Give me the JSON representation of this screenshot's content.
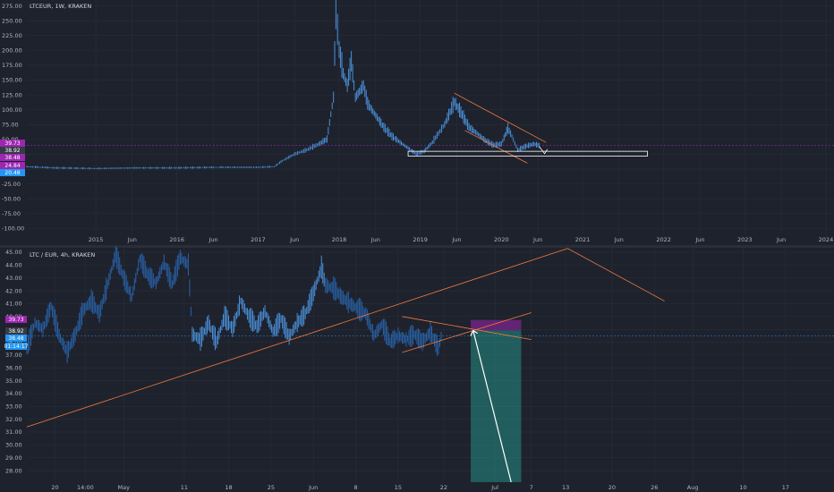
{
  "top_panel": {
    "header": "LTCEUR, 1W, KRAKEN"
  },
  "bottom_panel": {
    "header": "LTC / EUR, 4h, KRAKEN"
  },
  "chart_data": [
    {
      "type": "candlestick",
      "symbol": "LTCEUR",
      "interval": "1W",
      "exchange": "KRAKEN",
      "y_ticks": [
        "275.00",
        "250.00",
        "225.00",
        "200.00",
        "175.00",
        "150.00",
        "125.00",
        "100.00",
        "75.00",
        "50.00",
        "25.00",
        "0.00",
        "-25.00",
        "-50.00",
        "-75.00",
        "-100.00"
      ],
      "ylim": [
        -110,
        285
      ],
      "x_ticks": [
        "2015",
        "Jun",
        "2016",
        "Jun",
        "2017",
        "Jun",
        "2018",
        "Jun",
        "2019",
        "Jun",
        "2020",
        "Jun",
        "2021",
        "Jun",
        "2022",
        "Jun",
        "2023",
        "Jun",
        "2024"
      ],
      "price_badges": [
        {
          "value": 39.73,
          "label": "39.73",
          "color": "#9c27b0"
        },
        {
          "value": 38.92,
          "label": "38.92",
          "color": "#363a45"
        },
        {
          "value": 38.48,
          "label": "38.48",
          "color": "#9c27b0"
        },
        {
          "value": 24.84,
          "label": "24.84",
          "color": "#9c27b0"
        },
        {
          "value": 20.48,
          "label": "20.48",
          "color": "#2196f3"
        }
      ],
      "price_path": [
        {
          "x": 2014.15,
          "y": 4
        },
        {
          "x": 2014.5,
          "y": 2
        },
        {
          "x": 2015.0,
          "y": 1
        },
        {
          "x": 2015.5,
          "y": 2
        },
        {
          "x": 2016.0,
          "y": 2
        },
        {
          "x": 2016.5,
          "y": 3
        },
        {
          "x": 2017.0,
          "y": 3
        },
        {
          "x": 2017.2,
          "y": 4
        },
        {
          "x": 2017.3,
          "y": 14
        },
        {
          "x": 2017.45,
          "y": 25
        },
        {
          "x": 2017.6,
          "y": 32
        },
        {
          "x": 2017.75,
          "y": 42
        },
        {
          "x": 2017.85,
          "y": 50
        },
        {
          "x": 2017.93,
          "y": 120
        },
        {
          "x": 2017.96,
          "y": 265
        },
        {
          "x": 2018.0,
          "y": 200
        },
        {
          "x": 2018.05,
          "y": 160
        },
        {
          "x": 2018.1,
          "y": 140
        },
        {
          "x": 2018.15,
          "y": 180
        },
        {
          "x": 2018.2,
          "y": 120
        },
        {
          "x": 2018.3,
          "y": 140
        },
        {
          "x": 2018.35,
          "y": 110
        },
        {
          "x": 2018.45,
          "y": 90
        },
        {
          "x": 2018.55,
          "y": 70
        },
        {
          "x": 2018.65,
          "y": 55
        },
        {
          "x": 2018.75,
          "y": 45
        },
        {
          "x": 2018.85,
          "y": 35
        },
        {
          "x": 2018.95,
          "y": 25
        },
        {
          "x": 2019.05,
          "y": 30
        },
        {
          "x": 2019.15,
          "y": 45
        },
        {
          "x": 2019.3,
          "y": 75
        },
        {
          "x": 2019.42,
          "y": 112
        },
        {
          "x": 2019.5,
          "y": 95
        },
        {
          "x": 2019.6,
          "y": 70
        },
        {
          "x": 2019.7,
          "y": 60
        },
        {
          "x": 2019.8,
          "y": 48
        },
        {
          "x": 2019.9,
          "y": 40
        },
        {
          "x": 2020.0,
          "y": 42
        },
        {
          "x": 2020.08,
          "y": 68
        },
        {
          "x": 2020.13,
          "y": 55
        },
        {
          "x": 2020.2,
          "y": 32
        },
        {
          "x": 2020.3,
          "y": 38
        },
        {
          "x": 2020.4,
          "y": 42
        },
        {
          "x": 2020.48,
          "y": 38.9
        }
      ],
      "drawings": [
        {
          "name": "upper-trendline",
          "from": {
            "x": 2019.42,
            "y": 128
          },
          "to": {
            "x": 2020.55,
            "y": 45
          },
          "color": "#f57c3c"
        },
        {
          "name": "lower-trendline",
          "from": {
            "x": 2019.55,
            "y": 65
          },
          "to": {
            "x": 2020.32,
            "y": 10
          },
          "color": "#f57c3c"
        },
        {
          "name": "support-box",
          "x_from": 2018.85,
          "x_to": 2021.8,
          "y_from": 22,
          "y_to": 30,
          "color": "#ffffff"
        }
      ]
    },
    {
      "type": "candlestick",
      "symbol": "LTC / EUR",
      "interval": "4h",
      "exchange": "KRAKEN",
      "y_ticks": [
        "45.00",
        "44.00",
        "43.00",
        "42.00",
        "41.00",
        "40.00",
        "39.00",
        "38.00",
        "37.00",
        "36.00",
        "35.00",
        "34.00",
        "33.00",
        "32.00",
        "31.00",
        "30.00",
        "29.00",
        "28.00"
      ],
      "ylim": [
        27.1,
        45.35
      ],
      "x_ticks": [
        "20",
        "14:00",
        "May",
        "11",
        "18",
        "25",
        "Jun",
        "8",
        "15",
        "22",
        "Jul",
        "7",
        "13",
        "20",
        "26",
        "Aug",
        "10",
        "17"
      ],
      "price_badges": [
        {
          "value": 39.73,
          "label": "39.73",
          "color": "#9c27b0"
        },
        {
          "value": 38.92,
          "label": "38.92",
          "color": "#363a45"
        },
        {
          "value": 38.48,
          "label": "38.48",
          "color": "#2196f3"
        },
        {
          "value": 37.8,
          "label": "01:14:17",
          "color": "#2196f3"
        }
      ],
      "price_path": [
        {
          "x": 0,
          "y": 37.5
        },
        {
          "x": 2,
          "y": 39.5
        },
        {
          "x": 4,
          "y": 39.0
        },
        {
          "x": 6,
          "y": 40.8
        },
        {
          "x": 8,
          "y": 38.5
        },
        {
          "x": 10,
          "y": 37.2
        },
        {
          "x": 12,
          "y": 38.6
        },
        {
          "x": 14,
          "y": 40.5
        },
        {
          "x": 16,
          "y": 41.2
        },
        {
          "x": 18,
          "y": 40.2
        },
        {
          "x": 20,
          "y": 42.5
        },
        {
          "x": 22,
          "y": 44.8
        },
        {
          "x": 24,
          "y": 43.0
        },
        {
          "x": 26,
          "y": 41.5
        },
        {
          "x": 28,
          "y": 44.5
        },
        {
          "x": 30,
          "y": 43.2
        },
        {
          "x": 32,
          "y": 42.6
        },
        {
          "x": 34,
          "y": 44.2
        },
        {
          "x": 36,
          "y": 42.5
        },
        {
          "x": 38,
          "y": 44.6
        },
        {
          "x": 40,
          "y": 44.0
        },
        {
          "x": 41,
          "y": 38.6
        },
        {
          "x": 43,
          "y": 38.2
        },
        {
          "x": 45,
          "y": 39.5
        },
        {
          "x": 47,
          "y": 38.0
        },
        {
          "x": 49,
          "y": 40.0
        },
        {
          "x": 51,
          "y": 39.0
        },
        {
          "x": 53,
          "y": 41.2
        },
        {
          "x": 55,
          "y": 40.0
        },
        {
          "x": 57,
          "y": 39.2
        },
        {
          "x": 59,
          "y": 40.4
        },
        {
          "x": 61,
          "y": 38.8
        },
        {
          "x": 63,
          "y": 39.8
        },
        {
          "x": 65,
          "y": 38.4
        },
        {
          "x": 67,
          "y": 39.5
        },
        {
          "x": 69,
          "y": 40.2
        },
        {
          "x": 71,
          "y": 41.8
        },
        {
          "x": 73,
          "y": 43.8
        },
        {
          "x": 74,
          "y": 42.4
        },
        {
          "x": 76,
          "y": 42.2
        },
        {
          "x": 78,
          "y": 41.5
        },
        {
          "x": 80,
          "y": 41.0
        },
        {
          "x": 82,
          "y": 40.6
        },
        {
          "x": 84,
          "y": 40.2
        },
        {
          "x": 86,
          "y": 38.5
        },
        {
          "x": 88,
          "y": 39.4
        },
        {
          "x": 90,
          "y": 38.0
        },
        {
          "x": 92,
          "y": 38.5
        },
        {
          "x": 94,
          "y": 38.2
        },
        {
          "x": 96,
          "y": 38.6
        },
        {
          "x": 98,
          "y": 38.0
        },
        {
          "x": 100,
          "y": 38.8
        },
        {
          "x": 102,
          "y": 37.5
        },
        {
          "x": 103,
          "y": 38.9
        }
      ],
      "x_range": [
        0,
        200
      ],
      "drawings": [
        {
          "name": "long-rising-trendline",
          "from": {
            "x": 0,
            "y": 31.4
          },
          "to": {
            "x": 134,
            "y": 45.3
          },
          "color": "#f57c3c"
        },
        {
          "name": "long-falling-line",
          "from": {
            "x": 134,
            "y": 45.3
          },
          "to": {
            "x": 158,
            "y": 41.2
          },
          "color": "#f57c3c"
        },
        {
          "name": "wedge-upper",
          "from": {
            "x": 93,
            "y": 40.0
          },
          "to": {
            "x": 125,
            "y": 38.2
          },
          "color": "#f57c3c"
        },
        {
          "name": "wedge-lower",
          "from": {
            "x": 93,
            "y": 37.2
          },
          "to": {
            "x": 125,
            "y": 40.3
          },
          "color": "#f57c3c"
        },
        {
          "name": "stop-zone",
          "x_from": 110,
          "x_to": 122.5,
          "y_from": 38.92,
          "y_to": 39.73,
          "color": "#9c27b0"
        },
        {
          "name": "target-zone",
          "x_from": 110,
          "x_to": 122.5,
          "y_from": 27.1,
          "y_to": 38.92,
          "color": "#26a69a"
        },
        {
          "name": "projection-arrow",
          "from": {
            "x": 120,
            "y": 27.1
          },
          "to": {
            "x": 110.6,
            "y": 38.9
          },
          "color": "#ffffff"
        }
      ]
    }
  ]
}
